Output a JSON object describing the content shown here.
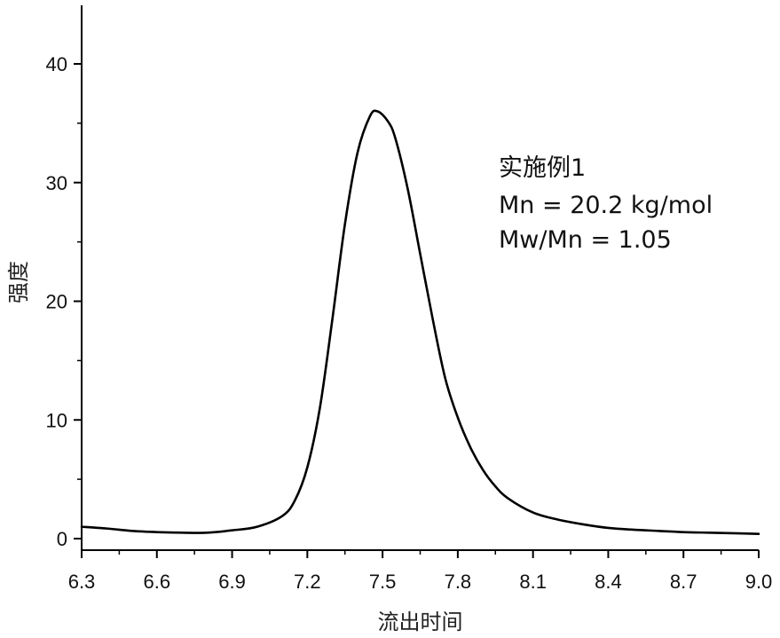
{
  "chart_data": {
    "type": "line",
    "title": "",
    "xlabel": "流出时间",
    "ylabel": "强度",
    "xlim": [
      6.3,
      9.0
    ],
    "ylim": [
      0,
      45
    ],
    "xticks": [
      "6.3",
      "6.6",
      "6.9",
      "7.2",
      "7.5",
      "7.8",
      "8.1",
      "8.4",
      "8.7",
      "9.0"
    ],
    "yticks": [
      "0",
      "10",
      "20",
      "30",
      "40"
    ],
    "grid": false,
    "annotations": [
      "实施例1",
      "Mn = 20.2 kg/mol",
      "Mw/Mn = 1.05"
    ],
    "series": [
      {
        "color": "#000000",
        "x": [
          6.3,
          6.4,
          6.5,
          6.6,
          6.7,
          6.8,
          6.9,
          7.0,
          7.1,
          7.15,
          7.2,
          7.25,
          7.3,
          7.35,
          7.4,
          7.45,
          7.48,
          7.52,
          7.55,
          7.6,
          7.65,
          7.7,
          7.75,
          7.8,
          7.85,
          7.9,
          7.95,
          8.0,
          8.1,
          8.2,
          8.3,
          8.4,
          8.5,
          8.6,
          8.7,
          8.8,
          8.9,
          9.0
        ],
        "y": [
          1.0,
          0.85,
          0.65,
          0.55,
          0.5,
          0.5,
          0.7,
          1.0,
          1.9,
          3.2,
          6.0,
          11.0,
          18.5,
          26.5,
          32.5,
          35.6,
          36.0,
          35.2,
          33.8,
          29.5,
          24.0,
          18.5,
          13.5,
          10.2,
          7.7,
          5.8,
          4.4,
          3.4,
          2.2,
          1.6,
          1.2,
          0.9,
          0.75,
          0.65,
          0.55,
          0.5,
          0.45,
          0.4
        ]
      }
    ]
  }
}
